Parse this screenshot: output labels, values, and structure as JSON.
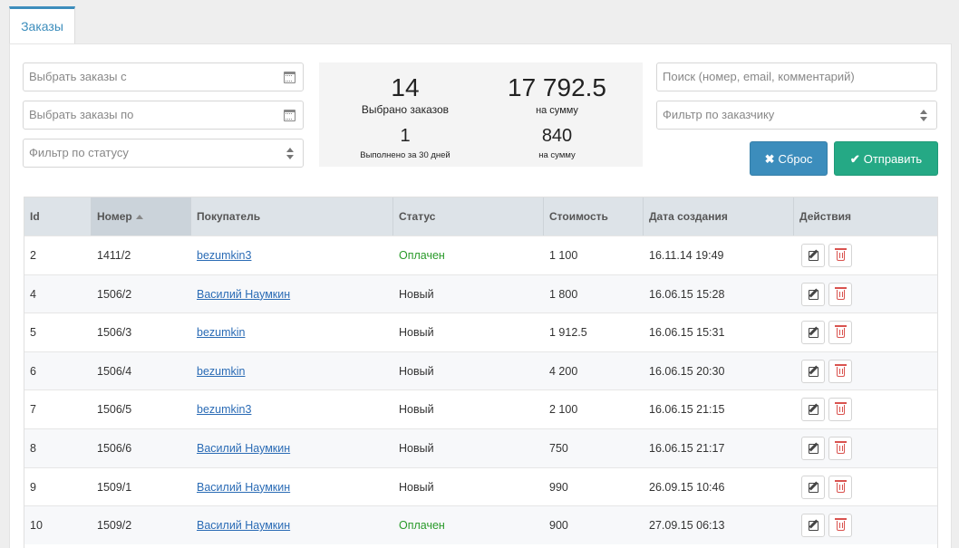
{
  "tabs": [
    {
      "label": "Заказы"
    }
  ],
  "filters": {
    "date_from_placeholder": "Выбрать заказы с",
    "date_to_placeholder": "Выбрать заказы по",
    "status_placeholder": "Фильтр по статусу",
    "search_placeholder": "Поиск (номер, email, комментарий)",
    "customer_placeholder": "Фильтр по заказчику"
  },
  "stats": {
    "selected_count": "14",
    "selected_label": "Выбрано заказов",
    "selected_sum": "17 792.5",
    "sum_label": "на сумму",
    "completed_count": "1",
    "completed_label": "Выполнено за 30 дней",
    "completed_sum": "840",
    "completed_sum_label": "на сумму"
  },
  "buttons": {
    "reset_label": "Сброс",
    "send_label": "Отправить"
  },
  "colors": {
    "primary": "#3c8dbc",
    "success": "#25a985",
    "paid_status": "#2a9a2a",
    "danger": "#d9534f"
  },
  "table": {
    "headers": [
      "Id",
      "Номер",
      "Покупатель",
      "Статус",
      "Стоимость",
      "Дата создания",
      "Действия"
    ],
    "sorted_column": "Номер",
    "rows": [
      {
        "id": "2",
        "number": "1411/2",
        "customer": "bezumkin3",
        "status": "Оплачен",
        "cost": "1 100",
        "date": "16.11.14 19:49"
      },
      {
        "id": "4",
        "number": "1506/2",
        "customer": "Василий Наумкин",
        "status": "Новый",
        "cost": "1 800",
        "date": "16.06.15 15:28"
      },
      {
        "id": "5",
        "number": "1506/3",
        "customer": "bezumkin",
        "status": "Новый",
        "cost": "1 912.5",
        "date": "16.06.15 15:31"
      },
      {
        "id": "6",
        "number": "1506/4",
        "customer": "bezumkin",
        "status": "Новый",
        "cost": "4 200",
        "date": "16.06.15 20:30"
      },
      {
        "id": "7",
        "number": "1506/5",
        "customer": "bezumkin3",
        "status": "Новый",
        "cost": "2 100",
        "date": "16.06.15 21:15"
      },
      {
        "id": "8",
        "number": "1506/6",
        "customer": "Василий Наумкин",
        "status": "Новый",
        "cost": "750",
        "date": "16.06.15 21:17"
      },
      {
        "id": "9",
        "number": "1509/1",
        "customer": "Василий Наумкин",
        "status": "Новый",
        "cost": "990",
        "date": "26.09.15 10:46"
      },
      {
        "id": "10",
        "number": "1509/2",
        "customer": "Василий Наумкин",
        "status": "Оплачен",
        "cost": "900",
        "date": "27.09.15 06:13"
      }
    ]
  }
}
